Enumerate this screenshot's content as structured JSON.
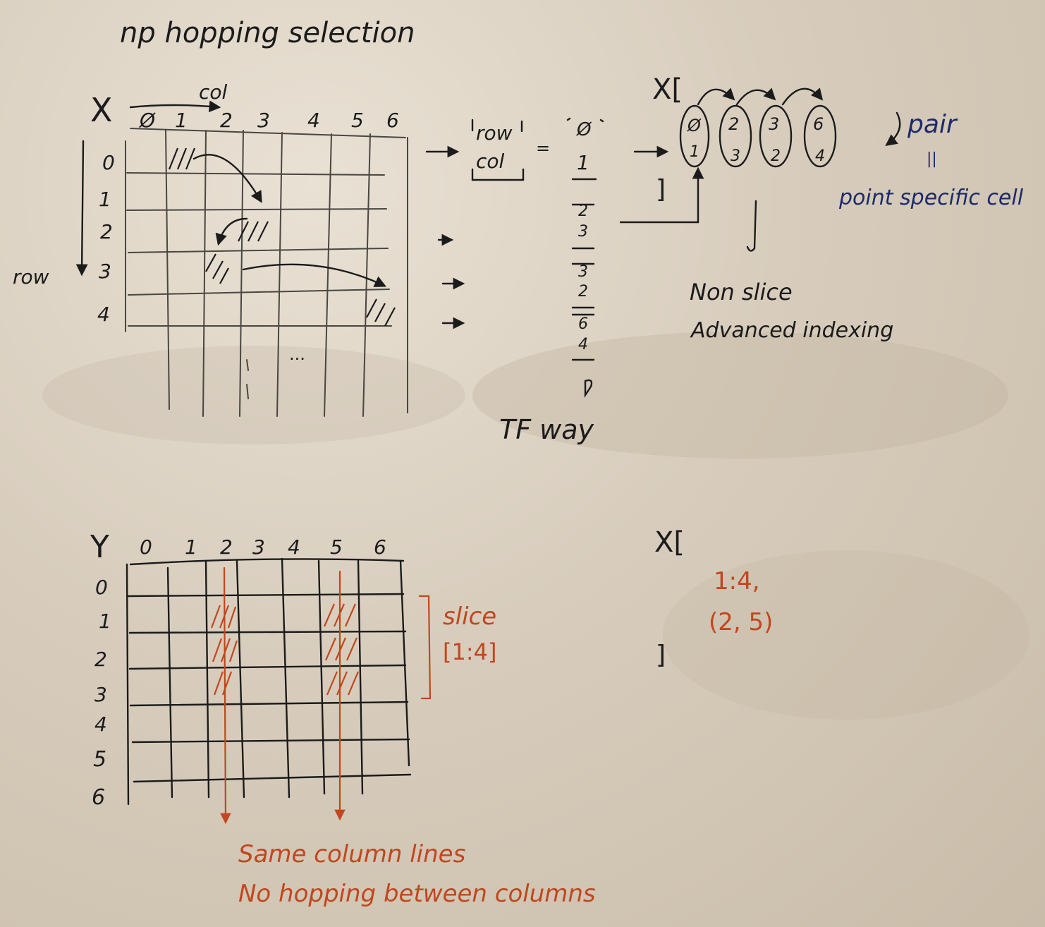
{
  "title": "np hopping selection",
  "top": {
    "matrix_label": "X",
    "col_label": "col",
    "row_label": "row",
    "col_indices": [
      "Ø",
      "1",
      "2",
      "3",
      "4",
      "5",
      "6"
    ],
    "row_indices": [
      "0",
      "1",
      "2",
      "3",
      "4"
    ],
    "ellipsis": "...",
    "tf_box_top": "row",
    "tf_box_bottom": "col",
    "equals": "=",
    "tf_pairs": [
      [
        "Ø",
        "1"
      ],
      [
        "2",
        "3"
      ],
      [
        "3",
        "2"
      ],
      [
        "6",
        "4"
      ]
    ],
    "tf_way": "TF way",
    "x_open": "X[",
    "x_close": "]",
    "pairs_top": [
      "Ø",
      "2",
      "3",
      "6"
    ],
    "pairs_bottom": [
      "1",
      "3",
      "2",
      "4"
    ],
    "pair_label": "pair",
    "pair_equals": "||",
    "point_specific_cell": "point specific cell",
    "non_slice": "Non slice",
    "advanced_indexing": "Advanced indexing"
  },
  "bottom": {
    "matrix_label": "Y",
    "col_indices": [
      "0",
      "1",
      "2",
      "3",
      "4",
      "5",
      "6"
    ],
    "row_indices": [
      "0",
      "1",
      "2",
      "3",
      "4",
      "5",
      "6"
    ],
    "slice_label": "slice",
    "slice_value": "[1:4]",
    "x_open": "X[",
    "expr_line1": "1:4,",
    "expr_line2": "(2, 5)",
    "x_close": "]",
    "caption_line1": "Same column lines",
    "caption_line2": "No hopping between columns"
  },
  "colors": {
    "ink": "#1b1b1b",
    "blue": "#1c2a6b",
    "red": "#c0471e",
    "board": "#ddd2c2"
  }
}
